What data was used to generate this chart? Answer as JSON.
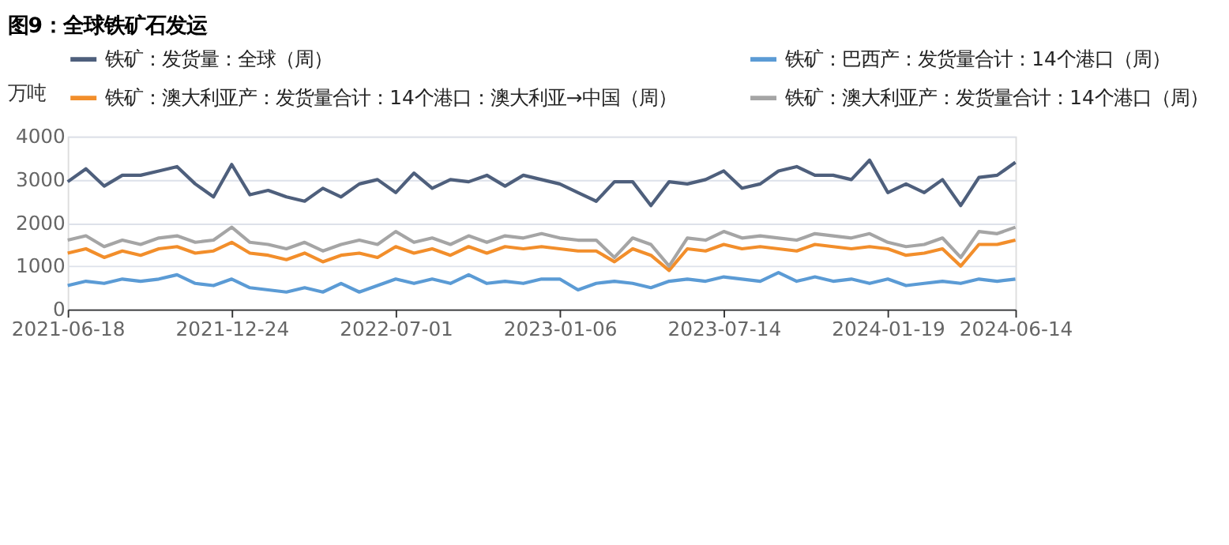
{
  "chart_data": {
    "type": "line",
    "title": "图9：全球铁矿石发运",
    "ylabel": "万吨",
    "x": [
      "2021-06-18",
      "2021-07-09",
      "2021-07-30",
      "2021-08-20",
      "2021-09-10",
      "2021-10-01",
      "2021-10-22",
      "2021-11-12",
      "2021-12-03",
      "2021-12-24",
      "2022-01-14",
      "2022-02-04",
      "2022-02-25",
      "2022-03-18",
      "2022-04-08",
      "2022-04-29",
      "2022-05-20",
      "2022-06-10",
      "2022-07-01",
      "2022-07-22",
      "2022-08-12",
      "2022-09-02",
      "2022-09-23",
      "2022-10-14",
      "2022-11-04",
      "2022-11-25",
      "2022-12-16",
      "2023-01-06",
      "2023-01-27",
      "2023-02-17",
      "2023-03-10",
      "2023-03-31",
      "2023-04-21",
      "2023-05-12",
      "2023-06-02",
      "2023-06-23",
      "2023-07-14",
      "2023-08-04",
      "2023-08-25",
      "2023-09-15",
      "2023-10-06",
      "2023-10-27",
      "2023-11-17",
      "2023-12-08",
      "2023-12-29",
      "2024-01-19",
      "2024-02-09",
      "2024-03-01",
      "2024-03-22",
      "2024-04-12",
      "2024-05-03",
      "2024-05-24",
      "2024-06-14"
    ],
    "series": [
      {
        "name": "铁矿：发货量：全球（周）",
        "color": "#4e5f7c",
        "values": [
          2950,
          3250,
          2850,
          3100,
          3100,
          3200,
          3300,
          2900,
          2600,
          3350,
          2650,
          2750,
          2600,
          2500,
          2800,
          2600,
          2900,
          3000,
          2700,
          3150,
          2800,
          3000,
          2950,
          3100,
          2850,
          3100,
          3000,
          2900,
          2700,
          2500,
          2950,
          2950,
          2400,
          2950,
          2900,
          3000,
          3200,
          2800,
          2900,
          3200,
          3300,
          3100,
          3100,
          3000,
          3450,
          2700,
          2900,
          2700,
          3000,
          2400,
          3050,
          3100,
          3400
        ]
      },
      {
        "name": "铁矿：巴西产：发货量合计：14个港口（周）",
        "color": "#5b9bd5",
        "values": [
          550,
          650,
          600,
          700,
          650,
          700,
          800,
          600,
          550,
          700,
          500,
          450,
          400,
          500,
          400,
          600,
          400,
          550,
          700,
          600,
          700,
          600,
          800,
          600,
          650,
          600,
          700,
          700,
          450,
          600,
          650,
          600,
          500,
          650,
          700,
          650,
          750,
          700,
          650,
          850,
          650,
          750,
          650,
          700,
          600,
          700,
          550,
          600,
          650,
          600,
          700,
          650,
          700
        ]
      },
      {
        "name": "铁矿：澳大利亚产：发货量合计：14个港口：澳大利亚→中国（周）",
        "color": "#f28e2b",
        "values": [
          1300,
          1400,
          1200,
          1350,
          1250,
          1400,
          1450,
          1300,
          1350,
          1550,
          1300,
          1250,
          1150,
          1300,
          1100,
          1250,
          1300,
          1200,
          1450,
          1300,
          1400,
          1250,
          1450,
          1300,
          1450,
          1400,
          1450,
          1400,
          1350,
          1350,
          1100,
          1400,
          1250,
          900,
          1400,
          1350,
          1500,
          1400,
          1450,
          1400,
          1350,
          1500,
          1450,
          1400,
          1450,
          1400,
          1250,
          1300,
          1400,
          1000,
          1500,
          1500,
          1600
        ]
      },
      {
        "name": "铁矿：澳大利亚产：发货量合计：14个港口（周）",
        "color": "#a5a5a5",
        "values": [
          1600,
          1700,
          1450,
          1600,
          1500,
          1650,
          1700,
          1550,
          1600,
          1900,
          1550,
          1500,
          1400,
          1550,
          1350,
          1500,
          1600,
          1500,
          1800,
          1550,
          1650,
          1500,
          1700,
          1550,
          1700,
          1650,
          1750,
          1650,
          1600,
          1600,
          1200,
          1650,
          1500,
          1000,
          1650,
          1600,
          1800,
          1650,
          1700,
          1650,
          1600,
          1750,
          1700,
          1650,
          1750,
          1550,
          1450,
          1500,
          1650,
          1200,
          1800,
          1750,
          1900
        ]
      }
    ],
    "ylim": [
      0,
      4000
    ],
    "yticks": [
      0,
      1000,
      2000,
      3000,
      4000
    ],
    "xlim": [
      "2021-06-18",
      "2024-06-14"
    ],
    "xticks": [
      "2021-06-18",
      "2021-12-24",
      "2022-07-01",
      "2023-01-06",
      "2023-07-14",
      "2024-01-19",
      "2024-06-14"
    ],
    "grid": "y",
    "legend": "top",
    "marker": "none",
    "line_style": "solid"
  }
}
